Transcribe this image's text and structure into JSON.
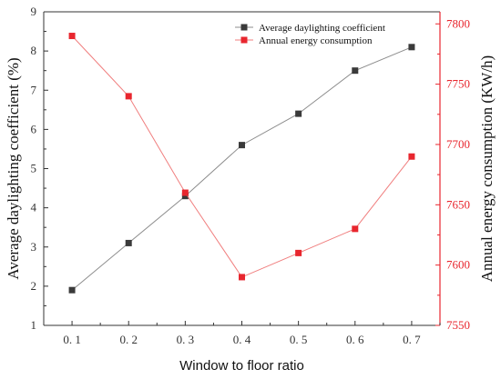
{
  "chart_data": {
    "type": "line",
    "xlabel": "Window to floor ratio",
    "x": [
      0.1,
      0.2,
      0.3,
      0.4,
      0.5,
      0.6,
      0.7
    ],
    "x_tick_labels": [
      "0. 1",
      "0. 2",
      "0. 3",
      "0. 4",
      "0. 5",
      "0. 6",
      "0. 7"
    ],
    "y_left": {
      "label": "Average daylighting coefficient (%)",
      "ylim": [
        1,
        9
      ],
      "ticks": [
        "1",
        "2",
        "3",
        "4",
        "5",
        "6",
        "7",
        "8",
        "9"
      ]
    },
    "y_right": {
      "label": "Annual energy consumption (KW/h)",
      "ylim": [
        7550,
        7810
      ],
      "ticks": [
        "7550",
        "7600",
        "7650",
        "7700",
        "7750",
        "7800"
      ]
    },
    "series": [
      {
        "name": "Average daylighting coefficient",
        "axis": "left",
        "color": "#3a3a3a",
        "line_color": "#8c8c8c",
        "marker": "square",
        "values": [
          1.9,
          3.1,
          4.3,
          5.6,
          6.4,
          7.5,
          8.1
        ]
      },
      {
        "name": "Annual energy consumption",
        "axis": "right",
        "color": "#e8262e",
        "line_color": "#f07e7e",
        "marker": "square",
        "values": [
          7790,
          7740,
          7660,
          7590,
          7610,
          7630,
          7690
        ]
      }
    ],
    "legend_position": "top-right",
    "grid": false
  }
}
